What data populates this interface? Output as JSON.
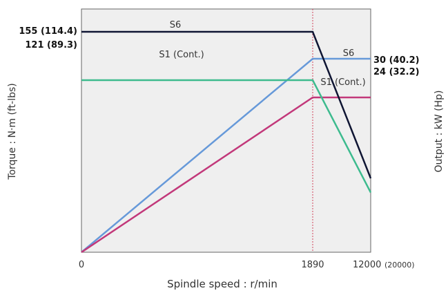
{
  "chart_data": {
    "type": "line",
    "xlabel": "Spindle speed : r/min",
    "ylabel_left": "Torque : N·m (ft-lbs)",
    "ylabel_right": "Output : kW (Hp)",
    "x_ticks": [
      "0",
      "1890",
      "12000"
    ],
    "x_max_note": "(20000)",
    "left_ticks": [
      "155 (114.4)",
      "121 (89.3)"
    ],
    "right_ticks": [
      "30 (40.2)",
      "24 (32.2)"
    ],
    "x": [
      0,
      1890,
      12000
    ],
    "series": [
      {
        "name": "S6",
        "axis": "torque",
        "color": "#0f1533",
        "values": [
          155,
          155,
          52
        ]
      },
      {
        "name": "S1 (Cont.)",
        "axis": "torque",
        "color": "#3dbb8e",
        "values": [
          121,
          121,
          42
        ]
      },
      {
        "name": "S6",
        "axis": "output",
        "color": "#6699d9",
        "values": [
          0,
          30,
          30
        ]
      },
      {
        "name": "S1 (Cont.)",
        "axis": "output",
        "color": "#c2387a",
        "values": [
          0,
          24,
          24
        ]
      }
    ],
    "vline_x": 1890,
    "grid": false,
    "background": "#f0f0f0"
  }
}
